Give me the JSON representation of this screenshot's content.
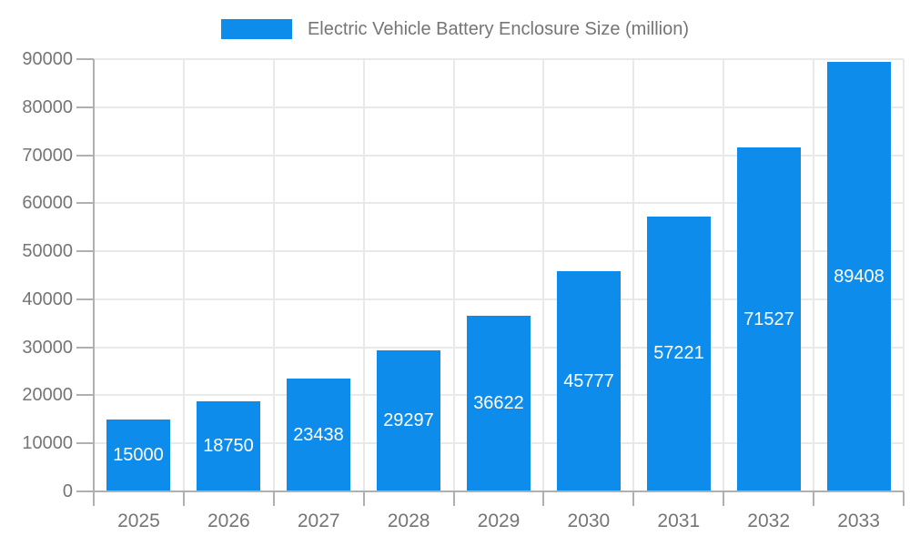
{
  "chart_data": {
    "type": "bar",
    "title": "Electric Vehicle Battery Enclosure Size (million)",
    "categories": [
      "2025",
      "2026",
      "2027",
      "2028",
      "2029",
      "2030",
      "2031",
      "2032",
      "2033"
    ],
    "values": [
      15000,
      18750,
      23438,
      29297,
      36622,
      45777,
      57221,
      71527,
      89408
    ],
    "bar_labels": [
      "15000",
      "18750",
      "23438",
      "29297",
      "36622",
      "45777",
      "57221",
      "71527",
      "89408"
    ],
    "xlabel": "",
    "ylabel": "",
    "ylim": [
      0,
      90000
    ],
    "ytick_step": 10000,
    "ytick_labels": [
      "0",
      "10000",
      "20000",
      "30000",
      "40000",
      "50000",
      "60000",
      "70000",
      "80000",
      "90000"
    ],
    "grid": true,
    "legend": {
      "position": "top-center",
      "label": "Electric Vehicle Battery Enclosure Size (million)"
    },
    "colors": {
      "bar": "#0d8cec",
      "bar_label_text": "#ffffff",
      "axis_text": "#757575",
      "grid_line": "#e9e9e9",
      "axis_line": "#b0b0b0",
      "background": "#ffffff"
    }
  }
}
